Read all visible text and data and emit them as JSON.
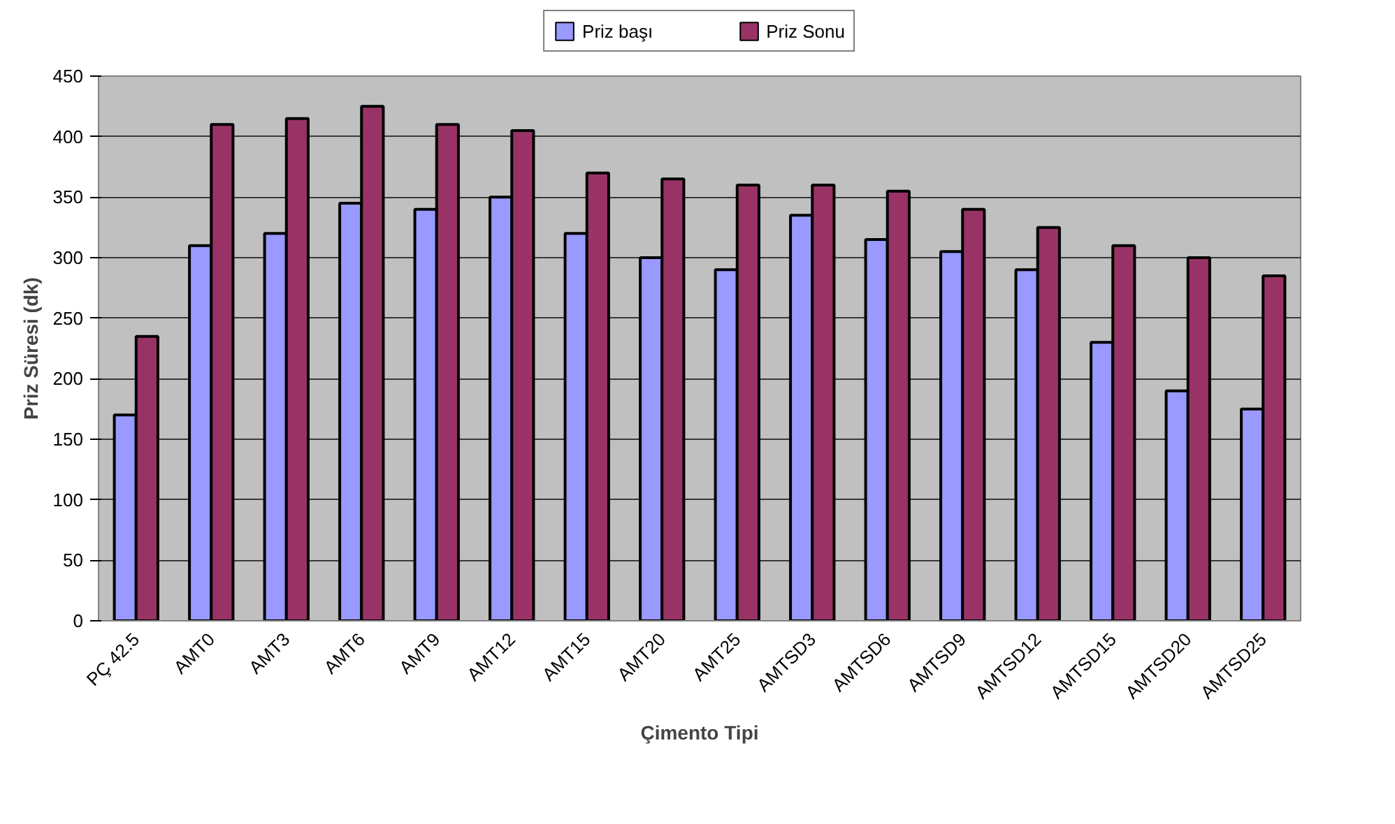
{
  "chart_data": {
    "type": "bar",
    "xlabel": "Çimento Tipi",
    "ylabel": "Priz Süresi (dk)",
    "categories": [
      "PÇ 42.5",
      "AMT0",
      "AMT3",
      "AMT6",
      "AMT9",
      "AMT12",
      "AMT15",
      "AMT20",
      "AMT25",
      "AMTSD3",
      "AMTSD6",
      "AMTSD9",
      "AMTSD12",
      "AMTSD15",
      "AMTSD20",
      "AMTSD25"
    ],
    "series": [
      {
        "name": "Priz başı",
        "color": "#9999ff",
        "values": [
          170,
          310,
          320,
          345,
          340,
          350,
          320,
          300,
          290,
          335,
          315,
          305,
          290,
          230,
          190,
          175
        ]
      },
      {
        "name": "Priz Sonu",
        "color": "#993366",
        "values": [
          235,
          410,
          415,
          425,
          410,
          405,
          370,
          365,
          360,
          360,
          355,
          340,
          325,
          310,
          300,
          285
        ]
      }
    ],
    "ylim": [
      0,
      450
    ],
    "yticks": [
      0,
      50,
      100,
      150,
      200,
      250,
      300,
      350,
      400,
      450
    ],
    "grid": "y",
    "legend": "top"
  }
}
